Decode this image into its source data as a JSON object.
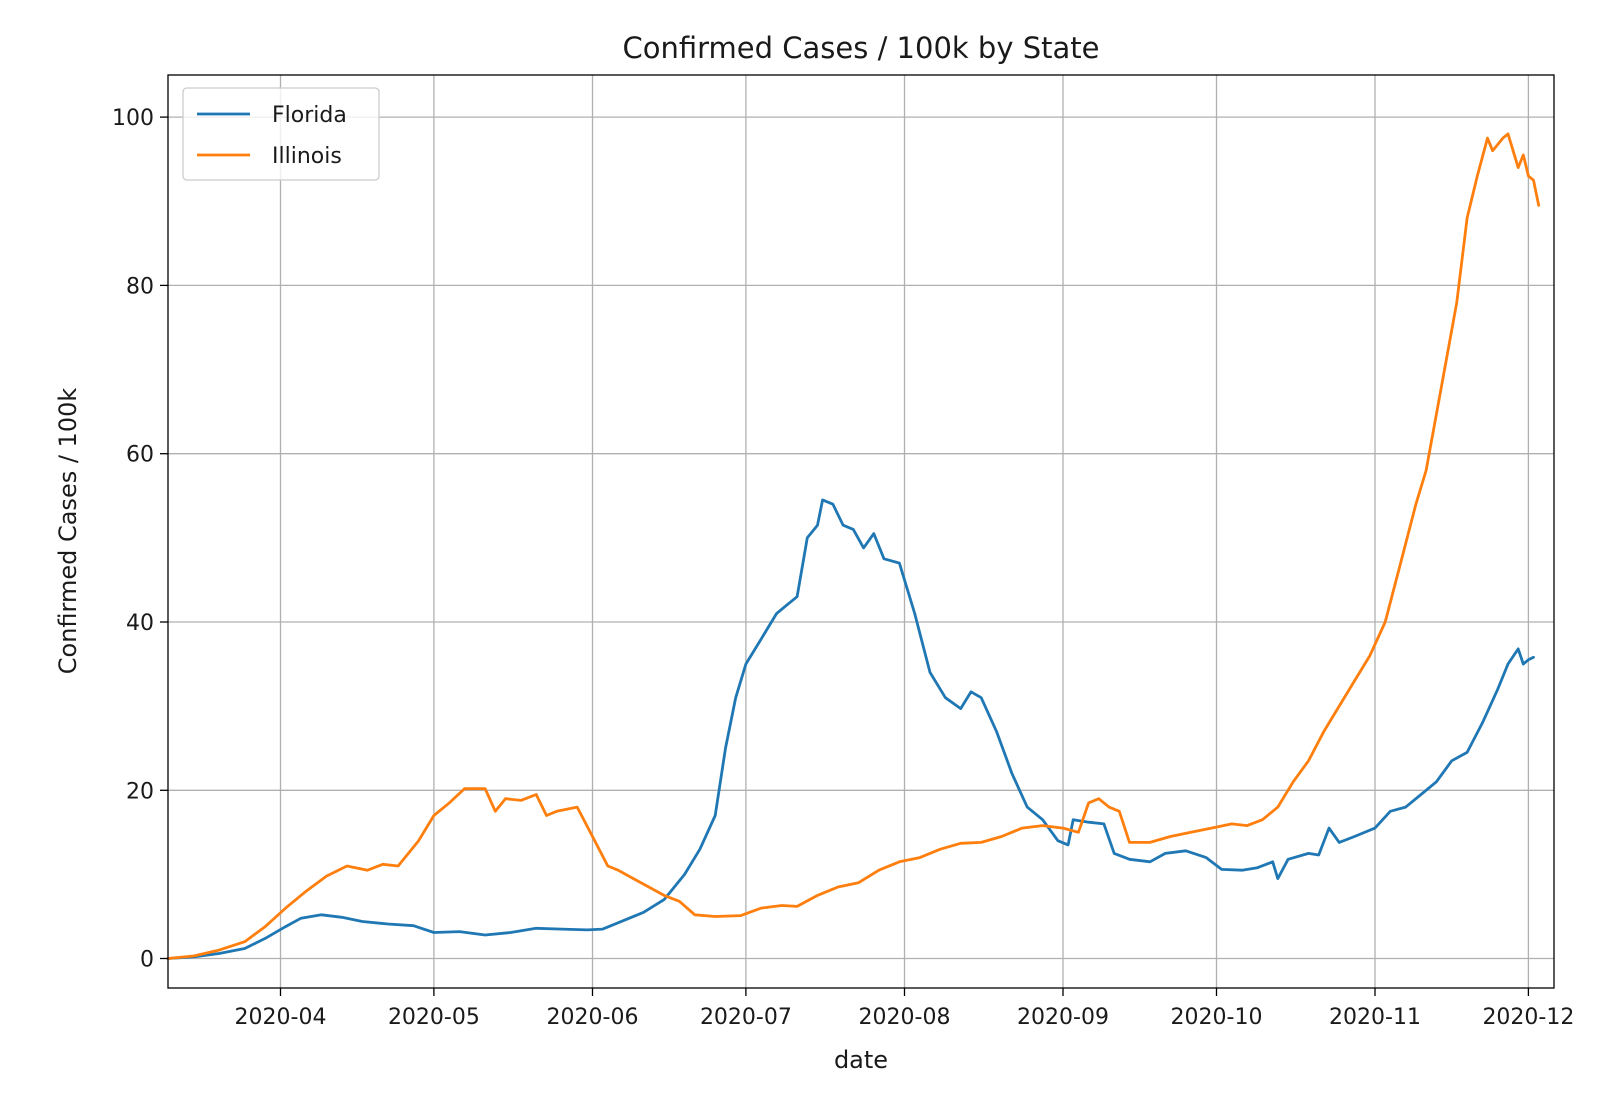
{
  "chart_data": {
    "type": "line",
    "title": "Confirmed Cases / 100k by State",
    "xlabel": "date",
    "ylabel": "Confirmed Cases / 100k",
    "x_axis_type": "date",
    "xlim": [
      "2020-03-10",
      "2020-12-06"
    ],
    "ylim": [
      -3.5,
      105
    ],
    "grid": true,
    "legend_position": "top-left",
    "x_ticks": [
      "2020-04-01",
      "2020-05-01",
      "2020-06-01",
      "2020-07-01",
      "2020-08-01",
      "2020-09-01",
      "2020-10-01",
      "2020-11-01",
      "2020-12-01"
    ],
    "x_tick_labels": [
      "2020-04",
      "2020-05",
      "2020-06",
      "2020-07",
      "2020-08",
      "2020-09",
      "2020-10",
      "2020-11",
      "2020-12"
    ],
    "y_ticks": [
      0,
      20,
      40,
      60,
      80,
      100
    ],
    "y_tick_labels": [
      "0",
      "20",
      "40",
      "60",
      "80",
      "100"
    ],
    "series": [
      {
        "name": "Florida",
        "color": "#1f77b4",
        "points": [
          [
            "2020-03-10",
            0
          ],
          [
            "2020-03-15",
            0.2
          ],
          [
            "2020-03-20",
            0.6
          ],
          [
            "2020-03-25",
            1.2
          ],
          [
            "2020-03-29",
            2.4
          ],
          [
            "2020-04-02",
            3.8
          ],
          [
            "2020-04-05",
            4.8
          ],
          [
            "2020-04-09",
            5.2
          ],
          [
            "2020-04-13",
            4.9
          ],
          [
            "2020-04-17",
            4.4
          ],
          [
            "2020-04-22",
            4.1
          ],
          [
            "2020-04-27",
            3.9
          ],
          [
            "2020-05-01",
            3.1
          ],
          [
            "2020-05-06",
            3.2
          ],
          [
            "2020-05-11",
            2.8
          ],
          [
            "2020-05-16",
            3.1
          ],
          [
            "2020-05-21",
            3.6
          ],
          [
            "2020-05-26",
            3.5
          ],
          [
            "2020-05-31",
            3.4
          ],
          [
            "2020-06-03",
            3.5
          ],
          [
            "2020-06-07",
            4.5
          ],
          [
            "2020-06-11",
            5.5
          ],
          [
            "2020-06-15",
            7.0
          ],
          [
            "2020-06-19",
            10.0
          ],
          [
            "2020-06-22",
            13.0
          ],
          [
            "2020-06-25",
            17.0
          ],
          [
            "2020-06-27",
            25.0
          ],
          [
            "2020-06-29",
            31.0
          ],
          [
            "2020-07-01",
            35.0
          ],
          [
            "2020-07-04",
            38.0
          ],
          [
            "2020-07-07",
            41.0
          ],
          [
            "2020-07-09",
            42.0
          ],
          [
            "2020-07-11",
            43.0
          ],
          [
            "2020-07-13",
            50.0
          ],
          [
            "2020-07-15",
            51.5
          ],
          [
            "2020-07-16",
            54.5
          ],
          [
            "2020-07-18",
            54.0
          ],
          [
            "2020-07-20",
            51.5
          ],
          [
            "2020-07-22",
            51.0
          ],
          [
            "2020-07-24",
            48.8
          ],
          [
            "2020-07-26",
            50.5
          ],
          [
            "2020-07-28",
            47.5
          ],
          [
            "2020-07-31",
            47.0
          ],
          [
            "2020-08-03",
            41.0
          ],
          [
            "2020-08-06",
            34.0
          ],
          [
            "2020-08-09",
            31.0
          ],
          [
            "2020-08-12",
            29.7
          ],
          [
            "2020-08-14",
            31.7
          ],
          [
            "2020-08-16",
            31.0
          ],
          [
            "2020-08-19",
            27.0
          ],
          [
            "2020-08-22",
            22.0
          ],
          [
            "2020-08-25",
            18.0
          ],
          [
            "2020-08-28",
            16.5
          ],
          [
            "2020-08-31",
            14.0
          ],
          [
            "2020-09-02",
            13.5
          ],
          [
            "2020-09-03",
            16.5
          ],
          [
            "2020-09-06",
            16.2
          ],
          [
            "2020-09-09",
            16.0
          ],
          [
            "2020-09-11",
            12.5
          ],
          [
            "2020-09-14",
            11.8
          ],
          [
            "2020-09-18",
            11.5
          ],
          [
            "2020-09-21",
            12.5
          ],
          [
            "2020-09-25",
            12.8
          ],
          [
            "2020-09-29",
            12.0
          ],
          [
            "2020-10-02",
            10.6
          ],
          [
            "2020-10-06",
            10.5
          ],
          [
            "2020-10-09",
            10.8
          ],
          [
            "2020-10-12",
            11.5
          ],
          [
            "2020-10-13",
            9.5
          ],
          [
            "2020-10-15",
            11.8
          ],
          [
            "2020-10-19",
            12.5
          ],
          [
            "2020-10-21",
            12.3
          ],
          [
            "2020-10-23",
            15.5
          ],
          [
            "2020-10-25",
            13.8
          ],
          [
            "2020-10-28",
            14.5
          ],
          [
            "2020-11-01",
            15.5
          ],
          [
            "2020-11-04",
            17.5
          ],
          [
            "2020-11-07",
            18.0
          ],
          [
            "2020-11-10",
            19.5
          ],
          [
            "2020-11-13",
            21.0
          ],
          [
            "2020-11-16",
            23.5
          ],
          [
            "2020-11-19",
            24.5
          ],
          [
            "2020-11-22",
            28.0
          ],
          [
            "2020-11-25",
            32.0
          ],
          [
            "2020-11-27",
            35.0
          ],
          [
            "2020-11-29",
            36.8
          ],
          [
            "2020-11-30",
            35.0
          ],
          [
            "2020-12-01",
            35.5
          ],
          [
            "2020-12-02",
            35.8
          ]
        ]
      },
      {
        "name": "Illinois",
        "color": "#ff7f0e",
        "points": [
          [
            "2020-03-10",
            0
          ],
          [
            "2020-03-15",
            0.3
          ],
          [
            "2020-03-20",
            1.0
          ],
          [
            "2020-03-25",
            2.0
          ],
          [
            "2020-03-29",
            3.8
          ],
          [
            "2020-04-02",
            6.0
          ],
          [
            "2020-04-06",
            8.0
          ],
          [
            "2020-04-10",
            9.8
          ],
          [
            "2020-04-14",
            11.0
          ],
          [
            "2020-04-18",
            10.5
          ],
          [
            "2020-04-21",
            11.2
          ],
          [
            "2020-04-24",
            11.0
          ],
          [
            "2020-04-28",
            14.0
          ],
          [
            "2020-05-01",
            17.0
          ],
          [
            "2020-05-04",
            18.5
          ],
          [
            "2020-05-07",
            20.2
          ],
          [
            "2020-05-11",
            20.2
          ],
          [
            "2020-05-13",
            17.5
          ],
          [
            "2020-05-15",
            19.0
          ],
          [
            "2020-05-18",
            18.8
          ],
          [
            "2020-05-21",
            19.5
          ],
          [
            "2020-05-23",
            17.0
          ],
          [
            "2020-05-25",
            17.5
          ],
          [
            "2020-05-29",
            18.0
          ],
          [
            "2020-06-01",
            14.5
          ],
          [
            "2020-06-04",
            11.0
          ],
          [
            "2020-06-06",
            10.5
          ],
          [
            "2020-06-09",
            9.5
          ],
          [
            "2020-06-12",
            8.5
          ],
          [
            "2020-06-15",
            7.5
          ],
          [
            "2020-06-18",
            6.8
          ],
          [
            "2020-06-21",
            5.2
          ],
          [
            "2020-06-25",
            5.0
          ],
          [
            "2020-06-30",
            5.1
          ],
          [
            "2020-07-04",
            6.0
          ],
          [
            "2020-07-08",
            6.3
          ],
          [
            "2020-07-11",
            6.2
          ],
          [
            "2020-07-15",
            7.5
          ],
          [
            "2020-07-19",
            8.5
          ],
          [
            "2020-07-23",
            9.0
          ],
          [
            "2020-07-27",
            10.5
          ],
          [
            "2020-07-31",
            11.5
          ],
          [
            "2020-08-04",
            12.0
          ],
          [
            "2020-08-08",
            13.0
          ],
          [
            "2020-08-12",
            13.7
          ],
          [
            "2020-08-16",
            13.8
          ],
          [
            "2020-08-20",
            14.5
          ],
          [
            "2020-08-24",
            15.5
          ],
          [
            "2020-08-28",
            15.8
          ],
          [
            "2020-09-01",
            15.5
          ],
          [
            "2020-09-04",
            15.0
          ],
          [
            "2020-09-06",
            18.5
          ],
          [
            "2020-09-08",
            19.0
          ],
          [
            "2020-09-10",
            18.0
          ],
          [
            "2020-09-12",
            17.5
          ],
          [
            "2020-09-14",
            13.8
          ],
          [
            "2020-09-18",
            13.8
          ],
          [
            "2020-09-22",
            14.5
          ],
          [
            "2020-09-26",
            15.0
          ],
          [
            "2020-09-30",
            15.5
          ],
          [
            "2020-10-04",
            16.0
          ],
          [
            "2020-10-07",
            15.8
          ],
          [
            "2020-10-10",
            16.5
          ],
          [
            "2020-10-13",
            18.0
          ],
          [
            "2020-10-16",
            21.0
          ],
          [
            "2020-10-19",
            23.5
          ],
          [
            "2020-10-22",
            27.0
          ],
          [
            "2020-10-25",
            30.0
          ],
          [
            "2020-10-28",
            33.0
          ],
          [
            "2020-10-31",
            36.0
          ],
          [
            "2020-11-03",
            40.0
          ],
          [
            "2020-11-06",
            47.0
          ],
          [
            "2020-11-09",
            54.0
          ],
          [
            "2020-11-11",
            58.0
          ],
          [
            "2020-11-14",
            68.0
          ],
          [
            "2020-11-17",
            78.0
          ],
          [
            "2020-11-19",
            88.0
          ],
          [
            "2020-11-21",
            93.0
          ],
          [
            "2020-11-23",
            97.5
          ],
          [
            "2020-11-24",
            96.0
          ],
          [
            "2020-11-26",
            97.5
          ],
          [
            "2020-11-27",
            98.0
          ],
          [
            "2020-11-28",
            96.0
          ],
          [
            "2020-11-29",
            94.0
          ],
          [
            "2020-11-30",
            95.5
          ],
          [
            "2020-12-01",
            93.0
          ],
          [
            "2020-12-02",
            92.5
          ],
          [
            "2020-12-03",
            89.5
          ]
        ]
      }
    ]
  }
}
